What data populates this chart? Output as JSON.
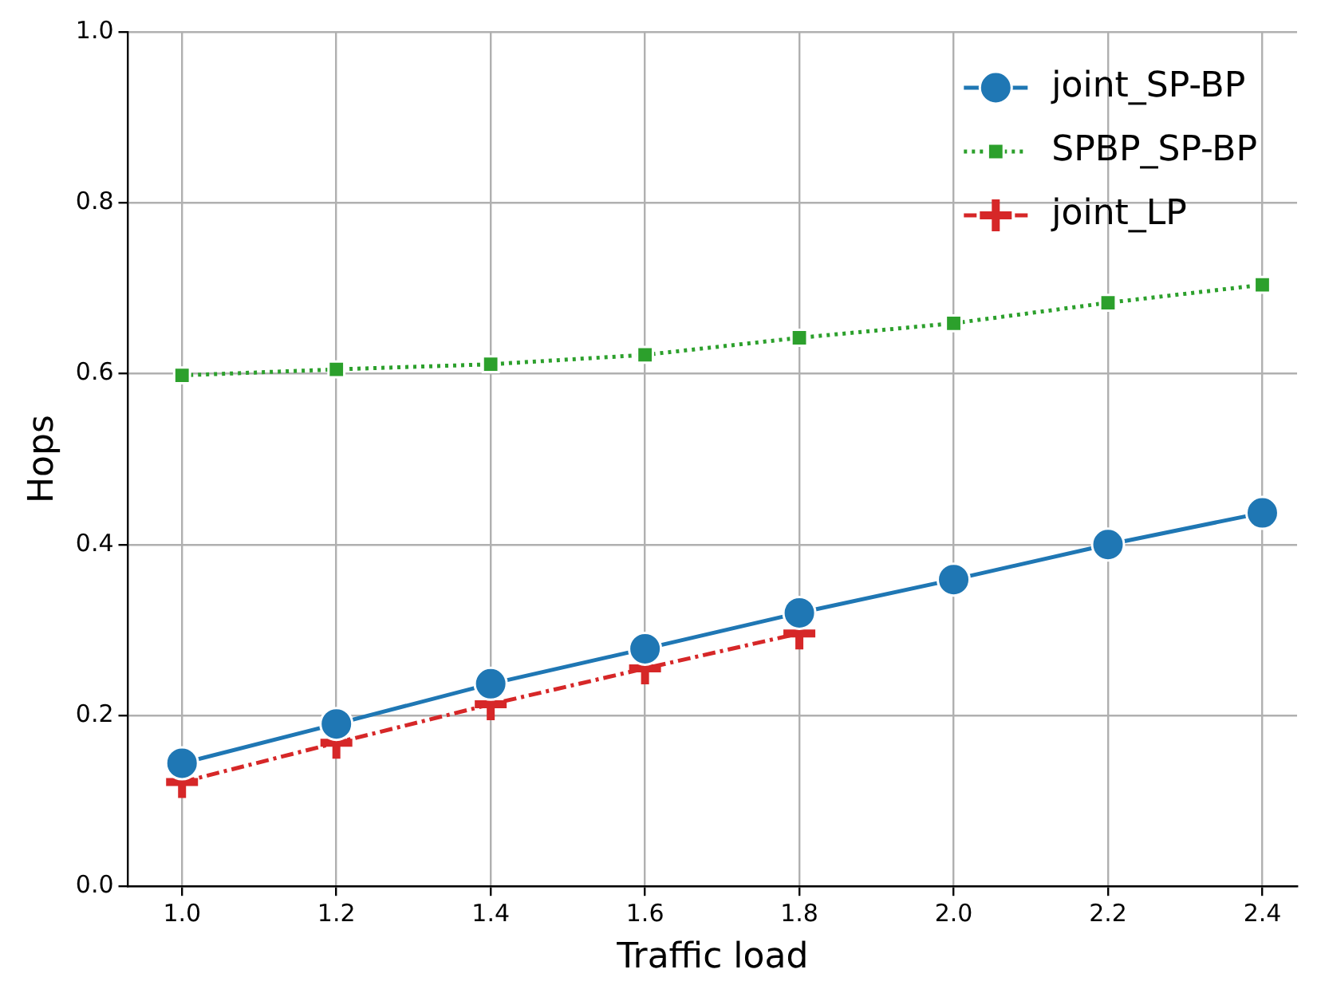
{
  "chart_data": {
    "type": "line",
    "xlabel": "Traffic load",
    "ylabel": "Hops",
    "x": [
      1.0,
      1.2,
      1.4,
      1.6,
      1.8,
      2.0,
      2.2,
      2.4
    ],
    "series": [
      {
        "name": "joint_SP-BP",
        "color": "#1f77b4",
        "marker": "circle",
        "line_style": "solid",
        "values": [
          0.144,
          0.19,
          0.237,
          0.278,
          0.32,
          0.359,
          0.4,
          0.437
        ]
      },
      {
        "name": "SPBP_SP-BP",
        "color": "#2ca02c",
        "marker": "square",
        "line_style": "dotted",
        "values": [
          0.598,
          0.605,
          0.611,
          0.622,
          0.642,
          0.659,
          0.683,
          0.704
        ]
      },
      {
        "name": "joint_LP",
        "color": "#d62728",
        "marker": "cross",
        "line_style": "dashed",
        "values": [
          0.122,
          0.168,
          0.213,
          0.255,
          0.296,
          null,
          null,
          null
        ]
      }
    ],
    "xlim": [
      0.93,
      2.445
    ],
    "xticks": [
      {
        "value": 1.0,
        "label": "1.0"
      },
      {
        "value": 1.2,
        "label": "1.2"
      },
      {
        "value": 1.4,
        "label": "1.4"
      },
      {
        "value": 1.6,
        "label": "1.6"
      },
      {
        "value": 1.8,
        "label": "1.8"
      },
      {
        "value": 2.0,
        "label": "2.0"
      },
      {
        "value": 2.2,
        "label": "2.2"
      },
      {
        "value": 2.4,
        "label": "2.4"
      }
    ],
    "ylim": [
      0,
      1
    ],
    "yticks": [
      {
        "value": 0,
        "label": "0.0"
      },
      {
        "value": 0.2,
        "label": "0.2"
      },
      {
        "value": 0.4,
        "label": "0.4"
      },
      {
        "value": 0.6,
        "label": "0.6"
      },
      {
        "value": 0.8,
        "label": "0.8"
      },
      {
        "value": 1,
        "label": "1.0"
      }
    ],
    "grid": true,
    "legend": "top right"
  }
}
